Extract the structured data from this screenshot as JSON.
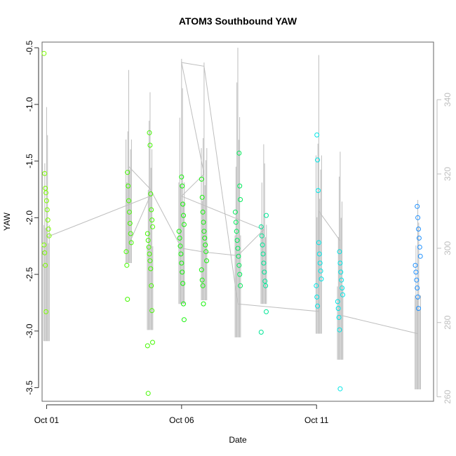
{
  "chart_data": {
    "type": "scatter",
    "title": "ATOM3 Southbound YAW",
    "xlabel": "Date",
    "ylabel": "YAW",
    "xlim": [
      "2023-09-30T20:00",
      "2023-10-15T08:00"
    ],
    "ylim": [
      -3.62,
      -0.45
    ],
    "y2lim": [
      258.8,
      355.5
    ],
    "x_ticks": [
      {
        "date": "2023-10-01",
        "label": "Oct 01"
      },
      {
        "date": "2023-10-06",
        "label": "Oct 06"
      },
      {
        "date": "2023-10-11",
        "label": "Oct 11"
      }
    ],
    "y_ticks": [
      -3.5,
      -3.0,
      -2.5,
      -2.0,
      -1.5,
      -1.0,
      -0.5
    ],
    "y_tick_labels": [
      "-3.5",
      "-3.0",
      "-2.5",
      "-2.0",
      "-1.5",
      "-1.0",
      "-0.5"
    ],
    "y2_ticks": [
      260,
      280,
      300,
      320,
      340
    ],
    "y2_tick_labels": [
      "260",
      "280",
      "300",
      "320",
      "340"
    ],
    "grid": false,
    "legend": "none",
    "colors": {
      "axis": "#333333",
      "box": "#666666",
      "line_series": "#bebebe",
      "right_axis": "#bebebe"
    },
    "series": [
      {
        "kind": "points",
        "color": "#7cfc00",
        "points": [
          {
            "x": "2023-10-01T00:00",
            "y": -0.55
          },
          {
            "x": "2023-10-01T00:00",
            "y": -1.61
          },
          {
            "x": "2023-10-01T00:00",
            "y": -1.74
          },
          {
            "x": "2023-10-01T00:00",
            "y": -1.78
          },
          {
            "x": "2023-10-01T00:00",
            "y": -1.85
          },
          {
            "x": "2023-10-01T00:00",
            "y": -1.93
          },
          {
            "x": "2023-10-01T00:00",
            "y": -2.02
          },
          {
            "x": "2023-10-01T00:00",
            "y": -2.1
          },
          {
            "x": "2023-10-01T00:00",
            "y": -2.16
          },
          {
            "x": "2023-10-01T00:00",
            "y": -2.24
          },
          {
            "x": "2023-10-01T00:00",
            "y": -2.31
          },
          {
            "x": "2023-10-01T00:00",
            "y": -2.42
          },
          {
            "x": "2023-10-01T00:00",
            "y": -2.83
          }
        ]
      },
      {
        "kind": "points",
        "color": "#44f800",
        "points": [
          {
            "x": "2023-10-04T01:00",
            "y": -1.6
          },
          {
            "x": "2023-10-04T01:00",
            "y": -1.72
          },
          {
            "x": "2023-10-04T01:00",
            "y": -1.85
          },
          {
            "x": "2023-10-04T01:00",
            "y": -1.95
          },
          {
            "x": "2023-10-04T01:00",
            "y": -2.05
          },
          {
            "x": "2023-10-04T01:00",
            "y": -2.14
          },
          {
            "x": "2023-10-04T01:00",
            "y": -2.22
          },
          {
            "x": "2023-10-04T01:00",
            "y": -2.3
          },
          {
            "x": "2023-10-04T01:00",
            "y": -2.42
          },
          {
            "x": "2023-10-04T01:00",
            "y": -2.72
          },
          {
            "x": "2023-10-04T20:00",
            "y": -1.25
          },
          {
            "x": "2023-10-04T20:00",
            "y": -1.36
          },
          {
            "x": "2023-10-04T20:00",
            "y": -1.79
          },
          {
            "x": "2023-10-04T20:00",
            "y": -1.93
          },
          {
            "x": "2023-10-04T20:00",
            "y": -2.02
          },
          {
            "x": "2023-10-04T20:00",
            "y": -2.08
          },
          {
            "x": "2023-10-04T20:00",
            "y": -2.14
          },
          {
            "x": "2023-10-04T20:00",
            "y": -2.2
          },
          {
            "x": "2023-10-04T20:00",
            "y": -2.26
          },
          {
            "x": "2023-10-04T20:00",
            "y": -2.32
          },
          {
            "x": "2023-10-04T20:00",
            "y": -2.38
          },
          {
            "x": "2023-10-04T20:00",
            "y": -2.45
          },
          {
            "x": "2023-10-04T20:00",
            "y": -2.6
          },
          {
            "x": "2023-10-04T20:00",
            "y": -2.82
          },
          {
            "x": "2023-10-04T20:00",
            "y": -3.1
          },
          {
            "x": "2023-10-04T20:00",
            "y": -3.13
          },
          {
            "x": "2023-10-04T20:00",
            "y": -3.55
          }
        ]
      },
      {
        "kind": "points",
        "color": "#16f20a",
        "points": [
          {
            "x": "2023-10-06T00:00",
            "y": -1.64
          },
          {
            "x": "2023-10-06T00:00",
            "y": -1.72
          },
          {
            "x": "2023-10-06T00:00",
            "y": -1.88
          },
          {
            "x": "2023-10-06T00:00",
            "y": -1.98
          },
          {
            "x": "2023-10-06T00:00",
            "y": -2.06
          },
          {
            "x": "2023-10-06T00:00",
            "y": -2.12
          },
          {
            "x": "2023-10-06T00:00",
            "y": -2.18
          },
          {
            "x": "2023-10-06T00:00",
            "y": -2.25
          },
          {
            "x": "2023-10-06T00:00",
            "y": -2.32
          },
          {
            "x": "2023-10-06T00:00",
            "y": -2.4
          },
          {
            "x": "2023-10-06T00:00",
            "y": -2.48
          },
          {
            "x": "2023-10-06T00:00",
            "y": -2.58
          },
          {
            "x": "2023-10-06T00:00",
            "y": -2.76
          },
          {
            "x": "2023-10-06T00:00",
            "y": -2.9
          },
          {
            "x": "2023-10-06T20:00",
            "y": -1.66
          },
          {
            "x": "2023-10-06T20:00",
            "y": -1.82
          },
          {
            "x": "2023-10-06T20:00",
            "y": -1.95
          },
          {
            "x": "2023-10-06T20:00",
            "y": -2.04
          },
          {
            "x": "2023-10-06T20:00",
            "y": -2.12
          },
          {
            "x": "2023-10-06T20:00",
            "y": -2.18
          },
          {
            "x": "2023-10-06T20:00",
            "y": -2.24
          },
          {
            "x": "2023-10-06T20:00",
            "y": -2.3
          },
          {
            "x": "2023-10-06T20:00",
            "y": -2.38
          },
          {
            "x": "2023-10-06T20:00",
            "y": -2.46
          },
          {
            "x": "2023-10-06T20:00",
            "y": -2.55
          },
          {
            "x": "2023-10-06T20:00",
            "y": -2.6
          },
          {
            "x": "2023-10-06T20:00",
            "y": -2.76
          }
        ]
      },
      {
        "kind": "points",
        "color": "#00ec5a",
        "points": [
          {
            "x": "2023-10-08T02:00",
            "y": -1.43
          },
          {
            "x": "2023-10-08T02:00",
            "y": -1.72
          },
          {
            "x": "2023-10-08T02:00",
            "y": -1.84
          },
          {
            "x": "2023-10-08T02:00",
            "y": -1.95
          },
          {
            "x": "2023-10-08T02:00",
            "y": -2.04
          },
          {
            "x": "2023-10-08T02:00",
            "y": -2.12
          },
          {
            "x": "2023-10-08T02:00",
            "y": -2.2
          },
          {
            "x": "2023-10-08T02:00",
            "y": -2.27
          },
          {
            "x": "2023-10-08T02:00",
            "y": -2.34
          },
          {
            "x": "2023-10-08T02:00",
            "y": -2.42
          },
          {
            "x": "2023-10-08T02:00",
            "y": -2.5
          },
          {
            "x": "2023-10-08T02:00",
            "y": -2.6
          }
        ]
      },
      {
        "kind": "points",
        "color": "#00e696",
        "points": [
          {
            "x": "2023-10-09T01:00",
            "y": -1.98
          },
          {
            "x": "2023-10-09T01:00",
            "y": -2.08
          },
          {
            "x": "2023-10-09T01:00",
            "y": -2.16
          },
          {
            "x": "2023-10-09T01:00",
            "y": -2.24
          },
          {
            "x": "2023-10-09T01:00",
            "y": -2.32
          },
          {
            "x": "2023-10-09T01:00",
            "y": -2.4
          },
          {
            "x": "2023-10-09T01:00",
            "y": -2.48
          },
          {
            "x": "2023-10-09T01:00",
            "y": -2.56
          },
          {
            "x": "2023-10-09T01:00",
            "y": -2.6
          },
          {
            "x": "2023-10-09T01:00",
            "y": -2.83
          },
          {
            "x": "2023-10-09T01:00",
            "y": -3.01
          }
        ]
      },
      {
        "kind": "points",
        "color": "#00e6e6",
        "points": [
          {
            "x": "2023-10-11T02:00",
            "y": -1.27
          },
          {
            "x": "2023-10-11T02:00",
            "y": -1.49
          },
          {
            "x": "2023-10-11T02:00",
            "y": -1.76
          },
          {
            "x": "2023-10-11T02:00",
            "y": -2.22
          },
          {
            "x": "2023-10-11T02:00",
            "y": -2.32
          },
          {
            "x": "2023-10-11T02:00",
            "y": -2.4
          },
          {
            "x": "2023-10-11T02:00",
            "y": -2.47
          },
          {
            "x": "2023-10-11T02:00",
            "y": -2.54
          },
          {
            "x": "2023-10-11T02:00",
            "y": -2.6
          },
          {
            "x": "2023-10-11T02:00",
            "y": -2.7
          },
          {
            "x": "2023-10-11T02:00",
            "y": -2.78
          },
          {
            "x": "2023-10-11T21:00",
            "y": -2.3
          },
          {
            "x": "2023-10-11T21:00",
            "y": -2.4
          },
          {
            "x": "2023-10-11T21:00",
            "y": -2.48
          },
          {
            "x": "2023-10-11T21:00",
            "y": -2.55
          },
          {
            "x": "2023-10-11T21:00",
            "y": -2.62
          },
          {
            "x": "2023-10-11T21:00",
            "y": -2.68
          },
          {
            "x": "2023-10-11T21:00",
            "y": -2.74
          },
          {
            "x": "2023-10-11T21:00",
            "y": -2.8
          },
          {
            "x": "2023-10-11T21:00",
            "y": -2.88
          },
          {
            "x": "2023-10-11T21:00",
            "y": -2.99
          },
          {
            "x": "2023-10-11T21:00",
            "y": -3.51
          }
        ]
      },
      {
        "kind": "points",
        "color": "#1e90ff",
        "points": [
          {
            "x": "2023-10-14T18:00",
            "y": -1.9
          },
          {
            "x": "2023-10-14T18:00",
            "y": -2.0
          },
          {
            "x": "2023-10-14T18:00",
            "y": -2.1
          },
          {
            "x": "2023-10-14T18:00",
            "y": -2.18
          },
          {
            "x": "2023-10-14T18:00",
            "y": -2.26
          },
          {
            "x": "2023-10-14T18:00",
            "y": -2.34
          },
          {
            "x": "2023-10-14T18:00",
            "y": -2.42
          },
          {
            "x": "2023-10-14T18:00",
            "y": -2.48
          },
          {
            "x": "2023-10-14T18:00",
            "y": -2.55
          },
          {
            "x": "2023-10-14T18:00",
            "y": -2.62
          },
          {
            "x": "2023-10-14T18:00",
            "y": -2.7
          },
          {
            "x": "2023-10-14T18:00",
            "y": -2.8
          }
        ]
      },
      {
        "kind": "line",
        "axis": "right",
        "color": "#bebebe",
        "points": [
          {
            "x": "2023-10-01T00:00",
            "y2": 303
          },
          {
            "x": "2023-10-04T20:00",
            "y2": 314
          },
          {
            "x": "2023-10-04T01:00",
            "y2": 301
          },
          {
            "x": "2023-10-04T01:00",
            "y2": 322
          },
          {
            "x": "2023-10-04T20:00",
            "y2": 316
          },
          {
            "x": "2023-10-06T00:00",
            "y2": 300
          },
          {
            "x": "2023-10-06T20:00",
            "y2": 299
          },
          {
            "x": "2023-10-08T02:00",
            "y2": 298
          },
          {
            "x": "2023-10-09T01:00",
            "y2": 305
          },
          {
            "x": "2023-10-06T00:00",
            "y2": 314
          },
          {
            "x": "2023-10-06T20:00",
            "y2": 320
          },
          {
            "x": "2023-10-06T00:00",
            "y2": 350
          },
          {
            "x": "2023-10-06T20:00",
            "y2": 349
          },
          {
            "x": "2023-10-08T02:00",
            "y2": 285
          },
          {
            "x": "2023-10-11T02:00",
            "y2": 283
          },
          {
            "x": "2023-10-11T02:00",
            "y2": 310
          },
          {
            "x": "2023-10-11T21:00",
            "y2": 302
          },
          {
            "x": "2023-10-11T21:00",
            "y2": 282
          },
          {
            "x": "2023-10-14T18:00",
            "y2": 277
          }
        ]
      },
      {
        "kind": "spikes",
        "axis": "right",
        "color": "#bebebe",
        "ranges": [
          {
            "x": "2023-10-01T00:00",
            "low": 275,
            "high": 338
          },
          {
            "x": "2023-10-04T01:00",
            "low": 296,
            "high": 348
          },
          {
            "x": "2023-10-04T20:00",
            "low": 278,
            "high": 342
          },
          {
            "x": "2023-10-06T00:00",
            "low": 285,
            "high": 351
          },
          {
            "x": "2023-10-06T20:00",
            "low": 286,
            "high": 350
          },
          {
            "x": "2023-10-08T02:00",
            "low": 276,
            "high": 354
          },
          {
            "x": "2023-10-09T01:00",
            "low": 285,
            "high": 328
          },
          {
            "x": "2023-10-11T02:00",
            "low": 277,
            "high": 352
          },
          {
            "x": "2023-10-11T21:00",
            "low": 270,
            "high": 326
          },
          {
            "x": "2023-10-14T18:00",
            "low": 262,
            "high": 313
          }
        ]
      }
    ]
  }
}
